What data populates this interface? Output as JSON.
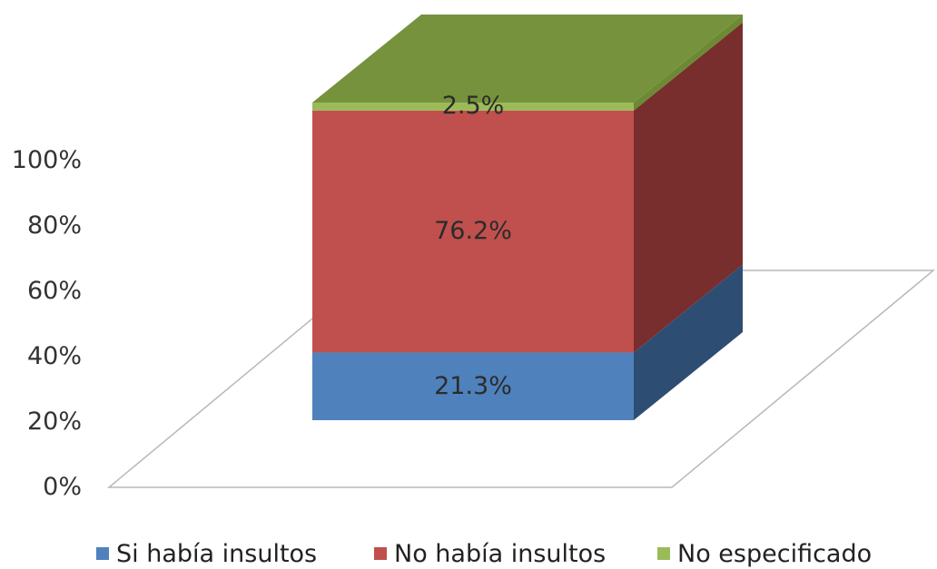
{
  "chart_data": {
    "type": "bar",
    "stacked": true,
    "three_d": true,
    "categories": [
      ""
    ],
    "series": [
      {
        "name": "Si había insultos",
        "values": [
          21.3
        ],
        "label": "21.3%",
        "color": "#4F81BD",
        "side_color": "#2E4D73"
      },
      {
        "name": "No había insultos",
        "values": [
          76.2
        ],
        "label": "76.2%",
        "color": "#C0504D",
        "side_color": "#772E2D"
      },
      {
        "name": "No especificado",
        "values": [
          2.5
        ],
        "label": "2.5%",
        "color": "#9BBB59",
        "side_color": "#6C8A32",
        "top_color": "#76923C"
      }
    ],
    "yticks": [
      "0%",
      "20%",
      "40%",
      "60%",
      "80%",
      "100%"
    ],
    "ylim": [
      0,
      100
    ],
    "grid": false,
    "legend": "bottom",
    "title": "",
    "xlabel": "",
    "ylabel": ""
  }
}
